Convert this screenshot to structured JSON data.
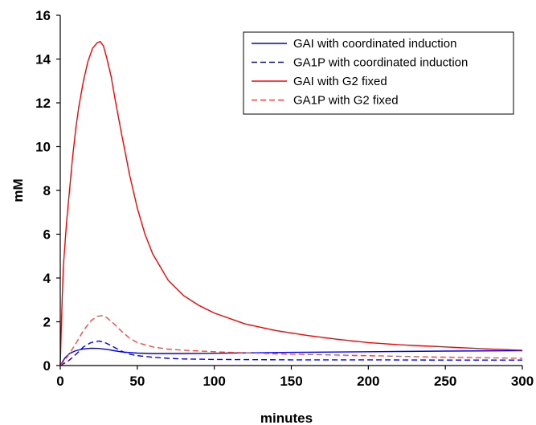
{
  "chart_data": {
    "type": "line",
    "xlabel": "minutes",
    "ylabel": "mM",
    "xlim": [
      0,
      300
    ],
    "ylim": [
      0,
      16
    ],
    "xticks": [
      "0",
      "50",
      "100",
      "150",
      "200",
      "250",
      "300"
    ],
    "yticks": [
      "0",
      "2",
      "4",
      "6",
      "8",
      "10",
      "12",
      "14",
      "16"
    ],
    "grid": false,
    "legend_position": "top-right",
    "series": [
      {
        "name": "GAI with coordinated induction",
        "color": "#0000ff",
        "dash": "solid",
        "x": [
          0,
          3,
          6,
          10,
          15,
          20,
          25,
          30,
          35,
          40,
          50,
          60,
          80,
          100,
          150,
          200,
          250,
          300
        ],
        "y": [
          0,
          0.35,
          0.55,
          0.68,
          0.76,
          0.79,
          0.78,
          0.74,
          0.68,
          0.62,
          0.57,
          0.55,
          0.55,
          0.56,
          0.6,
          0.63,
          0.66,
          0.68
        ]
      },
      {
        "name": "GA1P with coordinated induction",
        "color": "#0000ff",
        "dash": "dashed",
        "x": [
          0,
          5,
          10,
          15,
          20,
          25,
          28,
          32,
          36,
          40,
          45,
          50,
          60,
          70,
          80,
          100,
          150,
          200,
          250,
          300
        ],
        "y": [
          0,
          0.2,
          0.5,
          0.85,
          1.05,
          1.12,
          1.08,
          0.95,
          0.8,
          0.65,
          0.52,
          0.45,
          0.38,
          0.33,
          0.3,
          0.28,
          0.26,
          0.26,
          0.25,
          0.25
        ]
      },
      {
        "name": "GAI with G2 fixed",
        "color": "#ff0000",
        "dash": "solid",
        "x": [
          0,
          1,
          2,
          4,
          6,
          8,
          10,
          12,
          15,
          18,
          21,
          24,
          26,
          28,
          30,
          33,
          36,
          40,
          45,
          50,
          55,
          60,
          70,
          80,
          90,
          100,
          120,
          140,
          160,
          180,
          200,
          220,
          250,
          280,
          300
        ],
        "y": [
          0,
          2.5,
          4.5,
          6.5,
          8.0,
          9.5,
          10.8,
          11.8,
          13.0,
          13.9,
          14.5,
          14.75,
          14.8,
          14.6,
          14.1,
          13.2,
          12.0,
          10.5,
          8.7,
          7.2,
          6.0,
          5.1,
          3.9,
          3.2,
          2.75,
          2.4,
          1.9,
          1.6,
          1.38,
          1.2,
          1.05,
          0.95,
          0.85,
          0.75,
          0.7
        ]
      },
      {
        "name": "GA1P with G2 fixed",
        "color": "#ff4444",
        "dash": "dashed",
        "x": [
          0,
          3,
          6,
          10,
          15,
          20,
          24,
          27,
          30,
          35,
          40,
          45,
          50,
          60,
          70,
          80,
          100,
          120,
          150,
          200,
          250,
          300
        ],
        "y": [
          0,
          0.25,
          0.55,
          1.0,
          1.6,
          2.05,
          2.25,
          2.28,
          2.2,
          1.9,
          1.55,
          1.25,
          1.05,
          0.85,
          0.75,
          0.7,
          0.63,
          0.58,
          0.52,
          0.45,
          0.38,
          0.33
        ]
      }
    ]
  }
}
